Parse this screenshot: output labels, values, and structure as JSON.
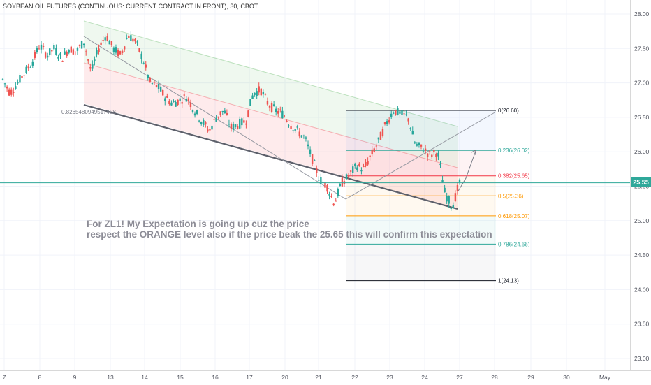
{
  "title": "SOYBEAN OIL FUTURES (CONTINUOUS: CURRENT CONTRACT IN FRONT), 30, CBOT",
  "annotation": {
    "line1": "For ZL1! My Expectation is going up cuz the price",
    "line2": "respect the ORANGE level also if the price beak the 25.65 this will confirm this expectation"
  },
  "current_price_label": "25.55",
  "colors": {
    "up": "#26a69a",
    "down": "#ef5350",
    "orange": "#ff9800",
    "teal_line": "#2fa89a"
  },
  "chart_data": {
    "type": "candlestick",
    "y_axis": {
      "min": 22.8,
      "max": 28.15,
      "ticks": [
        "23.00",
        "23.50",
        "24.00",
        "24.50",
        "25.00",
        "25.50",
        "26.00",
        "26.50",
        "27.00",
        "27.50",
        "28.00"
      ],
      "position": "right"
    },
    "x_axis": {
      "ticks": [
        "7",
        "8",
        "9",
        "13",
        "14",
        "15",
        "16",
        "17",
        "20",
        "21",
        "22",
        "23",
        "24",
        "27",
        "28",
        "29",
        "30",
        "May"
      ]
    },
    "current_price": 25.55,
    "fibonacci": [
      {
        "ratio": "0",
        "price": 26.6,
        "label": "0(26.60)"
      },
      {
        "ratio": "0.236",
        "price": 26.02,
        "label": "0.236(26.02)"
      },
      {
        "ratio": "0.382",
        "price": 25.65,
        "label": "0.382(25.65)"
      },
      {
        "ratio": "0.5",
        "price": 25.36,
        "label": "0.5(25.36)"
      },
      {
        "ratio": "0.618",
        "price": 25.07,
        "label": "0.618(25.07)"
      },
      {
        "ratio": "0.786",
        "price": 24.66,
        "label": "0.786(24.66)"
      },
      {
        "ratio": "1",
        "price": 24.13,
        "label": "1(24.13)"
      }
    ],
    "channel_label": "0.8265480949517458",
    "price_path": [
      27.05,
      26.85,
      27.0,
      27.15,
      27.3,
      27.55,
      27.4,
      27.5,
      27.35,
      27.5,
      27.45,
      27.6,
      27.15,
      27.5,
      27.7,
      27.5,
      27.4,
      27.7,
      27.6,
      27.35,
      27.0,
      26.95,
      26.8,
      26.7,
      26.75,
      26.8,
      26.6,
      26.45,
      26.3,
      26.5,
      26.6,
      26.35,
      26.4,
      26.45,
      26.85,
      26.9,
      26.7,
      26.6,
      26.55,
      26.4,
      26.3,
      26.2,
      25.9,
      25.6,
      25.5,
      25.25,
      25.55,
      25.65,
      25.8,
      25.75,
      25.95,
      26.15,
      26.4,
      26.6,
      26.55,
      26.5,
      26.1,
      26.05,
      25.95,
      26.0,
      25.4,
      25.2,
      25.55
    ]
  }
}
